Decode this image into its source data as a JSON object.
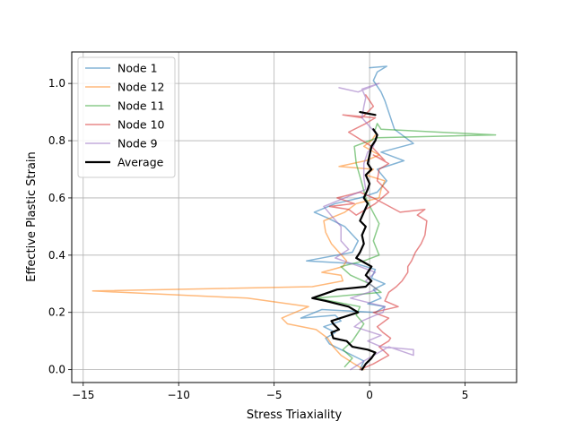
{
  "chart_data": {
    "type": "line",
    "title": "",
    "xlabel": "Stress Triaxiality",
    "ylabel": "Effective Plastic Strain",
    "xlim": [
      -15.6,
      7.7
    ],
    "ylim": [
      -0.045,
      1.11
    ],
    "x_ticks": [
      -15,
      -10,
      -5,
      0,
      5
    ],
    "y_ticks": [
      0.0,
      0.2,
      0.4,
      0.6,
      0.8,
      1.0
    ],
    "x_tick_labels": [
      "−15",
      "−10",
      "−5",
      "0",
      "5"
    ],
    "y_tick_labels": [
      "0.0",
      "0.2",
      "0.4",
      "0.6",
      "0.8",
      "1.0"
    ],
    "grid": true,
    "legend_position": "top-left",
    "series": [
      {
        "name": "Node 1",
        "color": "#1f77b4",
        "opacity": 0.55,
        "points": [
          [
            -0.5,
            0.0
          ],
          [
            -0.3,
            0.03
          ],
          [
            -1.5,
            0.07
          ],
          [
            -2.1,
            0.09
          ],
          [
            -2.3,
            0.11
          ],
          [
            -1.8,
            0.13
          ],
          [
            -2.4,
            0.15
          ],
          [
            -1.5,
            0.17
          ],
          [
            -1.8,
            0.19
          ],
          [
            -3.6,
            0.18
          ],
          [
            -2.5,
            0.21
          ],
          [
            0.3,
            0.2
          ],
          [
            0.8,
            0.22
          ],
          [
            -0.1,
            0.23
          ],
          [
            0.6,
            0.25
          ],
          [
            0.2,
            0.28
          ],
          [
            0.8,
            0.3
          ],
          [
            0.1,
            0.32
          ],
          [
            0.3,
            0.35
          ],
          [
            -0.7,
            0.37
          ],
          [
            -3.3,
            0.38
          ],
          [
            -0.9,
            0.41
          ],
          [
            -0.6,
            0.45
          ],
          [
            -1.3,
            0.5
          ],
          [
            -2.2,
            0.53
          ],
          [
            -2.9,
            0.55
          ],
          [
            -1.8,
            0.58
          ],
          [
            -0.5,
            0.6
          ],
          [
            0.4,
            0.62
          ],
          [
            0.9,
            0.66
          ],
          [
            0.4,
            0.7
          ],
          [
            1.8,
            0.73
          ],
          [
            0.6,
            0.76
          ],
          [
            2.3,
            0.79
          ],
          [
            1.3,
            0.84
          ],
          [
            1.0,
            0.9
          ],
          [
            0.8,
            0.94
          ],
          [
            0.6,
            0.97
          ],
          [
            0.2,
            1.01
          ],
          [
            0.4,
            1.04
          ],
          [
            0.9,
            1.06
          ],
          [
            0.0,
            1.055
          ]
        ]
      },
      {
        "name": "Node 12",
        "color": "#ff7f0e",
        "opacity": 0.55,
        "points": [
          [
            -0.3,
            0.0
          ],
          [
            -0.8,
            0.02
          ],
          [
            -1.5,
            0.05
          ],
          [
            -1.9,
            0.08
          ],
          [
            -2.2,
            0.11
          ],
          [
            -2.8,
            0.14
          ],
          [
            -4.3,
            0.16
          ],
          [
            -4.6,
            0.18
          ],
          [
            -3.2,
            0.22
          ],
          [
            -6.4,
            0.25
          ],
          [
            -14.5,
            0.275
          ],
          [
            -3.0,
            0.29
          ],
          [
            -1.4,
            0.31
          ],
          [
            -1.5,
            0.33
          ],
          [
            -2.5,
            0.34
          ],
          [
            -1.4,
            0.36
          ],
          [
            -1.2,
            0.38
          ],
          [
            -1.6,
            0.41
          ],
          [
            -2.0,
            0.44
          ],
          [
            -2.3,
            0.48
          ],
          [
            -2.4,
            0.52
          ],
          [
            -1.3,
            0.55
          ],
          [
            -0.7,
            0.58
          ],
          [
            0.5,
            0.6
          ],
          [
            0.6,
            0.63
          ],
          [
            0.8,
            0.66
          ],
          [
            -0.2,
            0.68
          ],
          [
            0.2,
            0.7
          ],
          [
            -1.6,
            0.71
          ],
          [
            -0.2,
            0.73
          ],
          [
            0.5,
            0.75
          ],
          [
            -0.3,
            0.78
          ],
          [
            0.1,
            0.8
          ],
          [
            0.3,
            0.82
          ]
        ]
      },
      {
        "name": "Node 11",
        "color": "#2ca02c",
        "opacity": 0.55,
        "points": [
          [
            -1.3,
            0.01
          ],
          [
            -0.9,
            0.04
          ],
          [
            -1.4,
            0.07
          ],
          [
            -0.9,
            0.1
          ],
          [
            -0.6,
            0.13
          ],
          [
            -0.3,
            0.16
          ],
          [
            -0.7,
            0.19
          ],
          [
            -0.5,
            0.22
          ],
          [
            -2.8,
            0.25
          ],
          [
            0.6,
            0.27
          ],
          [
            0.0,
            0.3
          ],
          [
            -1.0,
            0.33
          ],
          [
            -1.5,
            0.36
          ],
          [
            -0.3,
            0.38
          ],
          [
            0.5,
            0.4
          ],
          [
            0.2,
            0.45
          ],
          [
            0.5,
            0.51
          ],
          [
            0.1,
            0.56
          ],
          [
            -0.2,
            0.6
          ],
          [
            -0.4,
            0.65
          ],
          [
            -0.7,
            0.72
          ],
          [
            -0.8,
            0.78
          ],
          [
            0.4,
            0.81
          ],
          [
            6.6,
            0.82
          ],
          [
            0.6,
            0.84
          ],
          [
            0.4,
            0.86
          ],
          [
            0.3,
            0.84
          ]
        ]
      },
      {
        "name": "Node 10",
        "color": "#d62728",
        "opacity": 0.55,
        "points": [
          [
            -0.5,
            0.0
          ],
          [
            0.2,
            0.02
          ],
          [
            1.0,
            0.05
          ],
          [
            0.5,
            0.08
          ],
          [
            1.0,
            0.1
          ],
          [
            1.1,
            0.11
          ],
          [
            0.7,
            0.13
          ],
          [
            0.4,
            0.15
          ],
          [
            1.0,
            0.18
          ],
          [
            0.2,
            0.2
          ],
          [
            1.5,
            0.22
          ],
          [
            0.8,
            0.24
          ],
          [
            1.0,
            0.27
          ],
          [
            1.4,
            0.29
          ],
          [
            1.7,
            0.31
          ],
          [
            2.0,
            0.34
          ],
          [
            2.0,
            0.36
          ],
          [
            2.2,
            0.38
          ],
          [
            2.4,
            0.41
          ],
          [
            2.7,
            0.44
          ],
          [
            2.9,
            0.47
          ],
          [
            3.0,
            0.52
          ],
          [
            2.5,
            0.54
          ],
          [
            2.9,
            0.56
          ],
          [
            1.6,
            0.55
          ],
          [
            0.2,
            0.6
          ],
          [
            -0.5,
            0.62
          ],
          [
            -1.7,
            0.6
          ],
          [
            -0.8,
            0.58
          ],
          [
            -2.1,
            0.57
          ],
          [
            -1.1,
            0.56
          ],
          [
            -0.7,
            0.54
          ],
          [
            0.3,
            0.58
          ],
          [
            1.0,
            0.62
          ],
          [
            0.4,
            0.66
          ],
          [
            0.5,
            0.7
          ],
          [
            1.0,
            0.72
          ],
          [
            0.2,
            0.75
          ],
          [
            0.8,
            0.73
          ],
          [
            0.1,
            0.78
          ],
          [
            -1.1,
            0.83
          ],
          [
            -0.2,
            0.86
          ],
          [
            0.3,
            0.88
          ],
          [
            -1.4,
            0.89
          ],
          [
            -0.4,
            0.88
          ],
          [
            0.2,
            0.92
          ],
          [
            -0.2,
            0.96
          ]
        ]
      },
      {
        "name": "Node 9",
        "color": "#9467bd",
        "opacity": 0.55,
        "points": [
          [
            -1.0,
            0.0
          ],
          [
            -0.3,
            0.03
          ],
          [
            1.0,
            0.08
          ],
          [
            2.3,
            0.05
          ],
          [
            2.3,
            0.07
          ],
          [
            0.6,
            0.08
          ],
          [
            -0.1,
            0.1
          ],
          [
            0.6,
            0.12
          ],
          [
            -0.8,
            0.15
          ],
          [
            -0.4,
            0.17
          ],
          [
            0.3,
            0.19
          ],
          [
            0.7,
            0.2
          ],
          [
            0.8,
            0.22
          ],
          [
            -1.0,
            0.25
          ],
          [
            0.4,
            0.28
          ],
          [
            -0.2,
            0.31
          ],
          [
            0.3,
            0.34
          ],
          [
            -0.5,
            0.36
          ],
          [
            -1.8,
            0.39
          ],
          [
            -1.1,
            0.42
          ],
          [
            -1.5,
            0.45
          ],
          [
            -1.5,
            0.5
          ],
          [
            -1.9,
            0.53
          ],
          [
            -2.4,
            0.57
          ],
          [
            -1.3,
            0.6
          ],
          [
            -0.2,
            0.63
          ],
          [
            -0.3,
            0.67
          ],
          [
            -0.3,
            0.72
          ],
          [
            -0.1,
            0.76
          ],
          [
            0.2,
            0.78
          ],
          [
            0.4,
            0.82
          ],
          [
            0.0,
            0.85
          ],
          [
            -0.4,
            0.88
          ],
          [
            -0.3,
            0.92
          ],
          [
            -0.2,
            0.95
          ],
          [
            -0.4,
            0.98
          ],
          [
            0.5,
            1.0
          ],
          [
            -0.6,
            0.97
          ],
          [
            -1.6,
            0.985
          ]
        ]
      },
      {
        "name": "Average",
        "color": "#000000",
        "opacity": 1,
        "bold": true,
        "points": [
          [
            -0.4,
            0.0
          ],
          [
            -0.2,
            0.02
          ],
          [
            0.1,
            0.04
          ],
          [
            0.3,
            0.06
          ],
          [
            -0.1,
            0.07
          ],
          [
            -0.9,
            0.08
          ],
          [
            -1.2,
            0.1
          ],
          [
            -1.9,
            0.11
          ],
          [
            -2.0,
            0.13
          ],
          [
            -1.6,
            0.14
          ],
          [
            -1.9,
            0.16
          ],
          [
            -2.0,
            0.17
          ],
          [
            -0.6,
            0.2
          ],
          [
            -1.1,
            0.22
          ],
          [
            -2.3,
            0.24
          ],
          [
            -3.0,
            0.25
          ],
          [
            -1.7,
            0.28
          ],
          [
            -0.2,
            0.29
          ],
          [
            0.1,
            0.31
          ],
          [
            -0.2,
            0.33
          ],
          [
            0.1,
            0.36
          ],
          [
            -0.7,
            0.39
          ],
          [
            -0.5,
            0.41
          ],
          [
            -0.3,
            0.44
          ],
          [
            -0.4,
            0.47
          ],
          [
            -0.2,
            0.5
          ],
          [
            -0.5,
            0.52
          ],
          [
            -0.3,
            0.55
          ],
          [
            -0.1,
            0.58
          ],
          [
            -0.3,
            0.6
          ],
          [
            -0.1,
            0.63
          ],
          [
            0.0,
            0.65
          ],
          [
            -0.2,
            0.68
          ],
          [
            0.1,
            0.7
          ],
          [
            -0.1,
            0.72
          ],
          [
            0.0,
            0.75
          ],
          [
            0.1,
            0.78
          ],
          [
            0.3,
            0.8
          ],
          [
            0.4,
            0.82
          ],
          [
            0.2,
            0.84
          ]
        ]
      },
      {
        "name": "",
        "color": "#000000",
        "opacity": 1,
        "bold": true,
        "points": [
          [
            -0.5,
            0.9
          ],
          [
            0.3,
            0.89
          ]
        ]
      }
    ]
  }
}
